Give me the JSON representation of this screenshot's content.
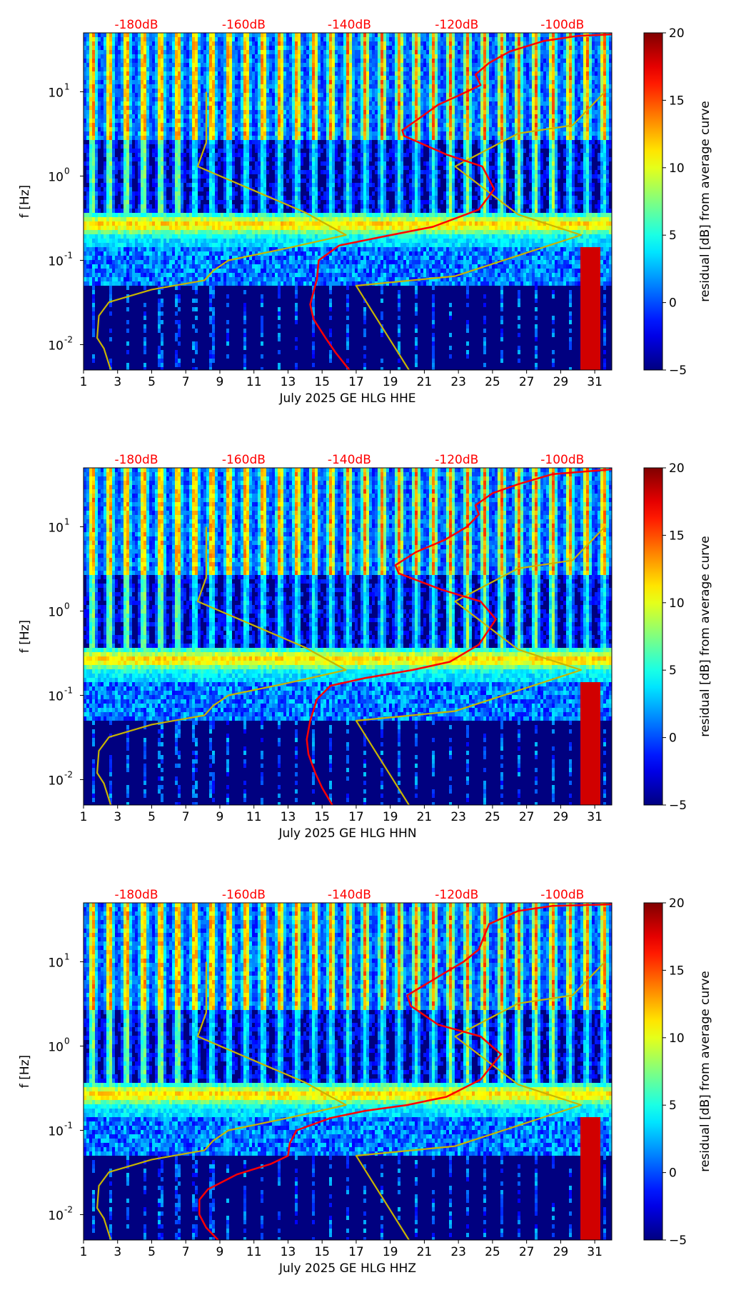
{
  "colorbar": {
    "label": "residual [dB] from average curve",
    "range": [
      -5,
      20
    ],
    "ticks": [
      "-5",
      "0",
      "5",
      "10",
      "15",
      "20"
    ],
    "colormap": "jet"
  },
  "colors": {
    "background": "#000080",
    "noise_model": "#c8b400",
    "average_curve": "#ff0000",
    "db_labels": "#ff0000"
  },
  "chart_data": [
    {
      "type": "heatmap",
      "title": "",
      "xlabel": "July 2025 GE HLG  HHE",
      "ylabel": "f [Hz]",
      "xlim": [
        1,
        32
      ],
      "ylim": [
        0.005,
        50
      ],
      "yscale": "log",
      "x_ticks": [
        "1",
        "3",
        "5",
        "7",
        "9",
        "11",
        "13",
        "15",
        "17",
        "19",
        "21",
        "23",
        "25",
        "27",
        "29",
        "31"
      ],
      "y_ticks": [
        {
          "label": "10",
          "exp": "-2",
          "value": 0.01
        },
        {
          "label": "10",
          "exp": "-1",
          "value": 0.1
        },
        {
          "label": "10",
          "exp": "0",
          "value": 1
        },
        {
          "label": "10",
          "exp": "1",
          "value": 10
        }
      ],
      "top_db_labels": [
        "-180dB",
        "-160dB",
        "-140dB",
        "-120dB",
        "-100dB"
      ],
      "top_db_positions_day": [
        4.1,
        10.4,
        16.6,
        22.9,
        29.1
      ],
      "series": [
        {
          "name": "",
          "kind": "noise_model",
          "color": "#c8b400",
          "points": [
            [
              2.6,
              0.005
            ],
            [
              2.2,
              0.009
            ],
            [
              1.8,
              0.012
            ],
            [
              1.9,
              0.022
            ],
            [
              2.5,
              0.032
            ],
            [
              5,
              0.045
            ],
            [
              8.1,
              0.058
            ],
            [
              8.6,
              0.075
            ],
            [
              9.5,
              0.1
            ],
            [
              13,
              0.14
            ],
            [
              16.4,
              0.2
            ],
            [
              14,
              0.37
            ],
            [
              7.7,
              1.3
            ],
            [
              8.2,
              2.5
            ],
            [
              8.2,
              10
            ]
          ]
        },
        {
          "name": "",
          "kind": "noise_model",
          "color": "#c8b400",
          "points": [
            [
              20.1,
              0.005
            ],
            [
              17.0,
              0.05
            ],
            [
              22.8,
              0.065
            ],
            [
              30.2,
              0.2
            ],
            [
              26.5,
              0.35
            ],
            [
              22.8,
              1.3
            ],
            [
              26.5,
              3.2
            ],
            [
              29.7,
              4
            ],
            [
              31.6,
              10
            ]
          ]
        },
        {
          "name": "",
          "kind": "average_curve",
          "color": "#ff0000",
          "points": [
            [
              16.6,
              0.005
            ],
            [
              15.8,
              0.008
            ],
            [
              15.2,
              0.012
            ],
            [
              14.5,
              0.02
            ],
            [
              14.3,
              0.03
            ],
            [
              14.7,
              0.06
            ],
            [
              14.8,
              0.1
            ],
            [
              16,
              0.15
            ],
            [
              18.5,
              0.19
            ],
            [
              21.5,
              0.25
            ],
            [
              24.2,
              0.4
            ],
            [
              25.1,
              0.7
            ],
            [
              24.4,
              1.3
            ],
            [
              22.3,
              1.8
            ],
            [
              19.8,
              3
            ],
            [
              19.7,
              3.5
            ],
            [
              20.8,
              5
            ],
            [
              21.8,
              7
            ],
            [
              23,
              9
            ],
            [
              24.3,
              12
            ],
            [
              24,
              16
            ],
            [
              24.8,
              22
            ],
            [
              26,
              30
            ],
            [
              28,
              40
            ],
            [
              30,
              46
            ],
            [
              32,
              48
            ]
          ]
        }
      ]
    },
    {
      "type": "heatmap",
      "title": "",
      "xlabel": "July 2025 GE HLG  HHN",
      "ylabel": "f [Hz]",
      "xlim": [
        1,
        32
      ],
      "ylim": [
        0.005,
        50
      ],
      "yscale": "log",
      "x_ticks": [
        "1",
        "3",
        "5",
        "7",
        "9",
        "11",
        "13",
        "15",
        "17",
        "19",
        "21",
        "23",
        "25",
        "27",
        "29",
        "31"
      ],
      "y_ticks": [
        {
          "label": "10",
          "exp": "-2",
          "value": 0.01
        },
        {
          "label": "10",
          "exp": "-1",
          "value": 0.1
        },
        {
          "label": "10",
          "exp": "0",
          "value": 1
        },
        {
          "label": "10",
          "exp": "1",
          "value": 10
        }
      ],
      "top_db_labels": [
        "-180dB",
        "-160dB",
        "-140dB",
        "-120dB",
        "-100dB"
      ],
      "top_db_positions_day": [
        4.1,
        10.4,
        16.6,
        22.9,
        29.1
      ],
      "series": [
        {
          "name": "",
          "kind": "noise_model",
          "color": "#c8b400",
          "points": [
            [
              2.6,
              0.005
            ],
            [
              2.2,
              0.009
            ],
            [
              1.8,
              0.012
            ],
            [
              1.9,
              0.022
            ],
            [
              2.5,
              0.032
            ],
            [
              5,
              0.045
            ],
            [
              8.1,
              0.058
            ],
            [
              8.6,
              0.075
            ],
            [
              9.5,
              0.1
            ],
            [
              13,
              0.14
            ],
            [
              16.4,
              0.2
            ],
            [
              14,
              0.37
            ],
            [
              7.7,
              1.3
            ],
            [
              8.2,
              2.5
            ],
            [
              8.2,
              10
            ]
          ]
        },
        {
          "name": "",
          "kind": "noise_model",
          "color": "#c8b400",
          "points": [
            [
              20.1,
              0.005
            ],
            [
              17.0,
              0.05
            ],
            [
              22.8,
              0.065
            ],
            [
              30.2,
              0.2
            ],
            [
              26.5,
              0.35
            ],
            [
              22.8,
              1.3
            ],
            [
              26.5,
              3.2
            ],
            [
              29.7,
              4
            ],
            [
              31.6,
              10
            ]
          ]
        },
        {
          "name": "",
          "kind": "average_curve",
          "color": "#ff0000",
          "points": [
            [
              15.6,
              0.005
            ],
            [
              15,
              0.008
            ],
            [
              14.6,
              0.012
            ],
            [
              14.2,
              0.02
            ],
            [
              14.1,
              0.03
            ],
            [
              14.3,
              0.05
            ],
            [
              14.7,
              0.09
            ],
            [
              15.5,
              0.13
            ],
            [
              17.5,
              0.16
            ],
            [
              20.3,
              0.2
            ],
            [
              22.5,
              0.25
            ],
            [
              24.2,
              0.4
            ],
            [
              25.2,
              0.8
            ],
            [
              24.3,
              1.3
            ],
            [
              22,
              1.8
            ],
            [
              19.5,
              2.8
            ],
            [
              19.3,
              3.5
            ],
            [
              20.5,
              5
            ],
            [
              22.2,
              7
            ],
            [
              23.5,
              10
            ],
            [
              24.2,
              14
            ],
            [
              24,
              18
            ],
            [
              25,
              25
            ],
            [
              26.5,
              32
            ],
            [
              28.5,
              42
            ],
            [
              32,
              48
            ]
          ]
        }
      ]
    },
    {
      "type": "heatmap",
      "title": "",
      "xlabel": "July 2025 GE HLG  HHZ",
      "ylabel": "f [Hz]",
      "xlim": [
        1,
        32
      ],
      "ylim": [
        0.005,
        50
      ],
      "yscale": "log",
      "x_ticks": [
        "1",
        "3",
        "5",
        "7",
        "9",
        "11",
        "13",
        "15",
        "17",
        "19",
        "21",
        "23",
        "25",
        "27",
        "29",
        "31"
      ],
      "y_ticks": [
        {
          "label": "10",
          "exp": "-2",
          "value": 0.01
        },
        {
          "label": "10",
          "exp": "-1",
          "value": 0.1
        },
        {
          "label": "10",
          "exp": "0",
          "value": 1
        },
        {
          "label": "10",
          "exp": "1",
          "value": 10
        }
      ],
      "top_db_labels": [
        "-180dB",
        "-160dB",
        "-140dB",
        "-120dB",
        "-100dB"
      ],
      "top_db_positions_day": [
        4.1,
        10.4,
        16.6,
        22.9,
        29.1
      ],
      "series": [
        {
          "name": "",
          "kind": "noise_model",
          "color": "#c8b400",
          "points": [
            [
              2.6,
              0.005
            ],
            [
              2.2,
              0.009
            ],
            [
              1.8,
              0.012
            ],
            [
              1.9,
              0.022
            ],
            [
              2.5,
              0.032
            ],
            [
              5,
              0.045
            ],
            [
              8.1,
              0.058
            ],
            [
              8.6,
              0.075
            ],
            [
              9.5,
              0.1
            ],
            [
              13,
              0.14
            ],
            [
              16.4,
              0.2
            ],
            [
              14,
              0.37
            ],
            [
              7.7,
              1.3
            ],
            [
              8.2,
              2.5
            ],
            [
              8.2,
              10
            ]
          ]
        },
        {
          "name": "",
          "kind": "noise_model",
          "color": "#c8b400",
          "points": [
            [
              20.1,
              0.005
            ],
            [
              17.0,
              0.05
            ],
            [
              22.8,
              0.065
            ],
            [
              30.2,
              0.2
            ],
            [
              26.5,
              0.35
            ],
            [
              22.8,
              1.3
            ],
            [
              26.5,
              3.2
            ],
            [
              29.7,
              4
            ],
            [
              31.6,
              10
            ]
          ]
        },
        {
          "name": "",
          "kind": "average_curve",
          "color": "#ff0000",
          "points": [
            [
              8.9,
              0.005
            ],
            [
              8.2,
              0.007
            ],
            [
              7.8,
              0.01
            ],
            [
              7.8,
              0.015
            ],
            [
              8.3,
              0.02
            ],
            [
              10,
              0.03
            ],
            [
              12,
              0.04
            ],
            [
              13,
              0.05
            ],
            [
              13.1,
              0.07
            ],
            [
              13.5,
              0.1
            ],
            [
              15.5,
              0.14
            ],
            [
              17.5,
              0.17
            ],
            [
              20,
              0.2
            ],
            [
              22.3,
              0.25
            ],
            [
              24.3,
              0.4
            ],
            [
              25.5,
              0.8
            ],
            [
              24.3,
              1.3
            ],
            [
              21.8,
              1.8
            ],
            [
              20.2,
              3
            ],
            [
              20,
              4
            ],
            [
              20.8,
              5
            ],
            [
              22,
              7
            ],
            [
              23.3,
              10
            ],
            [
              24.2,
              14
            ],
            [
              24.5,
              20
            ],
            [
              24.8,
              28
            ],
            [
              26.5,
              40
            ],
            [
              28.5,
              46
            ],
            [
              32,
              48
            ]
          ]
        }
      ]
    }
  ]
}
